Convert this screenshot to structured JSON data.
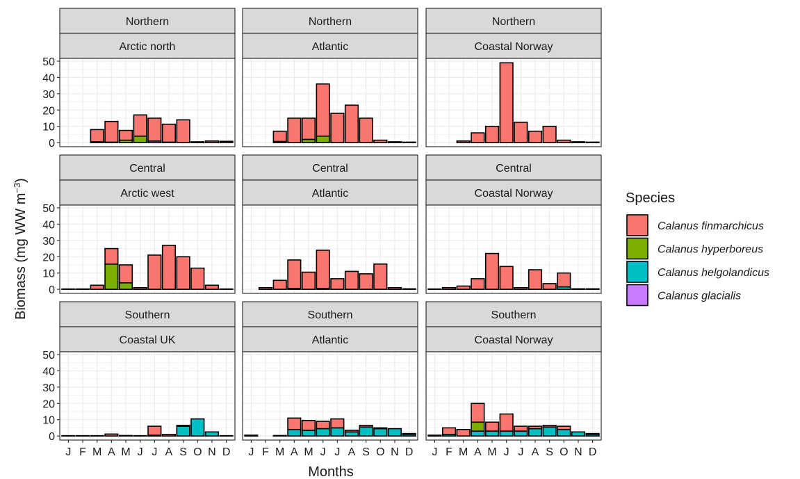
{
  "chart_data": {
    "type": "bar",
    "stacked": true,
    "grid": true,
    "ylabel": [
      "Biomass (mg WW m",
      "−3",
      ")"
    ],
    "xlabel": "Months",
    "legend_title": "Species",
    "legend_position": "right",
    "categories": [
      "J",
      "F",
      "M",
      "A",
      "M",
      "J",
      "J",
      "A",
      "S",
      "O",
      "N",
      "D"
    ],
    "ylim": [
      -2.5,
      51.7
    ],
    "yticks": [
      0,
      10,
      20,
      30,
      40,
      50
    ],
    "series": [
      {
        "name": "Calanus finmarchicus",
        "color": "#F8766D"
      },
      {
        "name": "Calanus hyperboreus",
        "color": "#7CAE00"
      },
      {
        "name": "Calanus helgolandicus",
        "color": "#00BFC4"
      },
      {
        "name": "Calanus glacialis",
        "color": "#C77CFF"
      }
    ],
    "facets": [
      {
        "row_label": "Northern",
        "col_label": "Arctic north",
        "series": [
          {
            "values": [
              null,
              null,
              7.5,
              12.7,
              6,
              13,
              14,
              11,
              14,
              0.5,
              1,
              0.8
            ]
          },
          {
            "values": [
              null,
              null,
              0.5,
              0.3,
              1.5,
              4,
              0,
              0.3,
              0,
              0,
              0,
              0
            ]
          },
          {
            "values": [
              null,
              null,
              0,
              0,
              0,
              0,
              0,
              0,
              0,
              0,
              0,
              0
            ]
          },
          {
            "values": [
              null,
              null,
              0,
              0,
              0,
              0,
              1,
              0,
              0,
              0,
              0,
              0
            ]
          }
        ]
      },
      {
        "row_label": "Northern",
        "col_label": "Atlantic",
        "series": [
          {
            "values": [
              null,
              null,
              6.3,
              15,
              13,
              32,
              18,
              23,
              15,
              1.5,
              0.5,
              0.3
            ]
          },
          {
            "values": [
              null,
              null,
              0.7,
              0,
              2,
              4,
              0,
              0,
              0,
              0,
              0,
              0
            ]
          },
          {
            "values": [
              null,
              null,
              0,
              0,
              0,
              0,
              0,
              0,
              0,
              0,
              0,
              0
            ]
          },
          {
            "values": [
              null,
              null,
              0,
              0,
              0,
              0,
              0,
              0,
              0,
              0,
              0,
              0
            ]
          }
        ]
      },
      {
        "row_label": "Northern",
        "col_label": "Coastal Norway",
        "series": [
          {
            "values": [
              null,
              null,
              1,
              6,
              10,
              49,
              12.5,
              7,
              10,
              1.5,
              0.5,
              0.3
            ]
          },
          {
            "values": [
              null,
              null,
              0,
              0,
              0,
              0,
              0,
              0,
              0,
              0,
              0,
              0
            ]
          },
          {
            "values": [
              null,
              null,
              0,
              0,
              0,
              0,
              0,
              0,
              0,
              0,
              0,
              0
            ]
          },
          {
            "values": [
              null,
              null,
              0,
              0,
              0,
              0,
              0,
              0,
              0,
              0,
              0,
              0
            ]
          }
        ]
      },
      {
        "row_label": "Central",
        "col_label": "Arctic west",
        "series": [
          {
            "values": [
              0.2,
              0.2,
              2.5,
              9.5,
              11,
              1,
              21,
              27,
              20,
              13,
              2.5,
              0.2
            ]
          },
          {
            "values": [
              0,
              0,
              0,
              15.5,
              4,
              0,
              0,
              0,
              0,
              0,
              0,
              0
            ]
          },
          {
            "values": [
              0,
              0,
              0,
              0,
              0,
              0,
              0,
              0,
              0,
              0,
              0,
              0
            ]
          },
          {
            "values": [
              0,
              0,
              0,
              0,
              0,
              0,
              0,
              0,
              0,
              0,
              0,
              0
            ]
          }
        ]
      },
      {
        "row_label": "Central",
        "col_label": "Atlantic",
        "series": [
          {
            "values": [
              null,
              1,
              5.5,
              17.5,
              10.5,
              23.5,
              6.5,
              11,
              9.5,
              15.5,
              1,
              0.3
            ]
          },
          {
            "values": [
              null,
              0,
              0,
              0.5,
              0,
              0.5,
              0,
              0,
              0,
              0,
              0,
              0
            ]
          },
          {
            "values": [
              null,
              0,
              0,
              0,
              0,
              0,
              0,
              0,
              0,
              0,
              0,
              0
            ]
          },
          {
            "values": [
              null,
              0,
              0,
              0,
              0,
              0,
              0,
              0,
              0,
              0,
              0,
              0
            ]
          }
        ]
      },
      {
        "row_label": "Central",
        "col_label": "Coastal Norway",
        "series": [
          {
            "values": [
              0.2,
              1,
              2,
              6.5,
              22,
              14,
              1,
              12,
              3.5,
              8.5,
              0.3,
              0.3
            ]
          },
          {
            "values": [
              0,
              0,
              0,
              0,
              0,
              0,
              0,
              0,
              0,
              0,
              0,
              0
            ]
          },
          {
            "values": [
              0,
              0,
              0,
              0,
              0,
              0,
              0,
              0,
              0,
              1.5,
              0,
              0
            ]
          },
          {
            "values": [
              0,
              0,
              0,
              0,
              0,
              0,
              0,
              0,
              0,
              0,
              0,
              0
            ]
          }
        ]
      },
      {
        "row_label": "Southern",
        "col_label": "Coastal UK",
        "series": [
          {
            "values": [
              0.2,
              0.2,
              0.2,
              1.2,
              0.3,
              0.2,
              5.5,
              1,
              0.5,
              0,
              0,
              0.2
            ]
          },
          {
            "values": [
              0,
              0,
              0,
              0,
              0,
              0,
              0,
              0,
              0,
              0,
              0,
              0
            ]
          },
          {
            "values": [
              0,
              0,
              0,
              0,
              0,
              0,
              0.5,
              0,
              6,
              10.5,
              2.5,
              0
            ]
          },
          {
            "values": [
              0,
              0,
              0,
              0,
              0,
              0,
              0,
              0,
              0,
              0,
              0,
              0
            ]
          }
        ]
      },
      {
        "row_label": "Southern",
        "col_label": "Atlantic",
        "series": [
          {
            "values": [
              0.5,
              null,
              0.3,
              7,
              6,
              4.5,
              5.5,
              1,
              1,
              0.5,
              0,
              0.5
            ]
          },
          {
            "values": [
              0,
              null,
              0,
              0,
              0,
              0,
              0,
              0,
              0,
              0,
              0,
              0
            ]
          },
          {
            "values": [
              0,
              null,
              0,
              4,
              3.5,
              4.5,
              5,
              2.5,
              5.5,
              4.5,
              4.5,
              1
            ]
          },
          {
            "values": [
              0,
              null,
              0,
              0,
              0,
              0,
              0,
              0,
              0,
              0,
              0,
              0
            ]
          }
        ]
      },
      {
        "row_label": "Southern",
        "col_label": "Coastal Norway",
        "series": [
          {
            "values": [
              0.5,
              4,
              4,
              11.5,
              5.5,
              10.5,
              3,
              1.5,
              1,
              2,
              0,
              0.5
            ]
          },
          {
            "values": [
              0,
              0,
              0,
              5.5,
              0,
              0,
              0,
              0,
              0,
              0,
              0,
              0
            ]
          },
          {
            "values": [
              0,
              1,
              0,
              3,
              3,
              3,
              3,
              4.5,
              5.5,
              4,
              2.5,
              1
            ]
          },
          {
            "values": [
              0,
              0,
              0,
              0,
              0,
              0,
              0,
              0,
              0,
              0,
              0,
              0
            ]
          }
        ]
      }
    ]
  }
}
